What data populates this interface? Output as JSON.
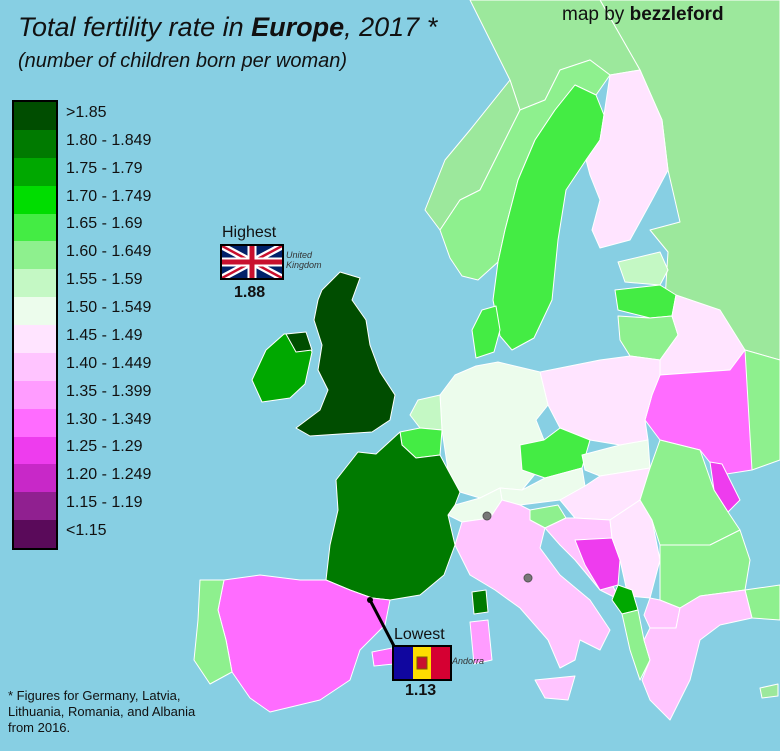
{
  "title": {
    "prefix": "Total fertility rate in ",
    "bold": "Europe",
    "suffix": ", 2017 *"
  },
  "subtitle": "(number of children born per woman)",
  "credit": {
    "prefix": "map by ",
    "bold": "bezzleford"
  },
  "legend": [
    {
      "label": ">1.85",
      "color": "#004d00"
    },
    {
      "label": "1.80 - 1.849",
      "color": "#007a00"
    },
    {
      "label": "1.75 - 1.79",
      "color": "#00a800"
    },
    {
      "label": "1.70 - 1.749",
      "color": "#00dd00"
    },
    {
      "label": "1.65 - 1.69",
      "color": "#44ec44"
    },
    {
      "label": "1.60 - 1.649",
      "color": "#8ef08e"
    },
    {
      "label": "1.55 - 1.59",
      "color": "#c4f8c4"
    },
    {
      "label": "1.50 - 1.549",
      "color": "#ecfcec"
    },
    {
      "label": "1.45 - 1.49",
      "color": "#ffe4ff"
    },
    {
      "label": "1.40 - 1.449",
      "color": "#ffc4ff"
    },
    {
      "label": "1.35 - 1.399",
      "color": "#ff9cff"
    },
    {
      "label": "1.30 - 1.349",
      "color": "#ff6cff"
    },
    {
      "label": "1.25 - 1.29",
      "color": "#ee3cee"
    },
    {
      "label": "1.20 - 1.249",
      "color": "#c828c8"
    },
    {
      "label": "1.15 - 1.19",
      "color": "#902090"
    },
    {
      "label": "<1.15",
      "color": "#5a0a5a"
    }
  ],
  "highest": {
    "label": "Highest",
    "country": "United Kingdom",
    "value": "1.88"
  },
  "lowest": {
    "label": "Lowest",
    "country": "Andorra",
    "value": "1.13"
  },
  "footnote": "* Figures for Germany, Latvia, Lithuania, Romania, and Albania from 2016.",
  "colors": {
    "sea": "#87cfe3",
    "border": "#ffffff",
    "outside": "#9ce89c"
  }
}
